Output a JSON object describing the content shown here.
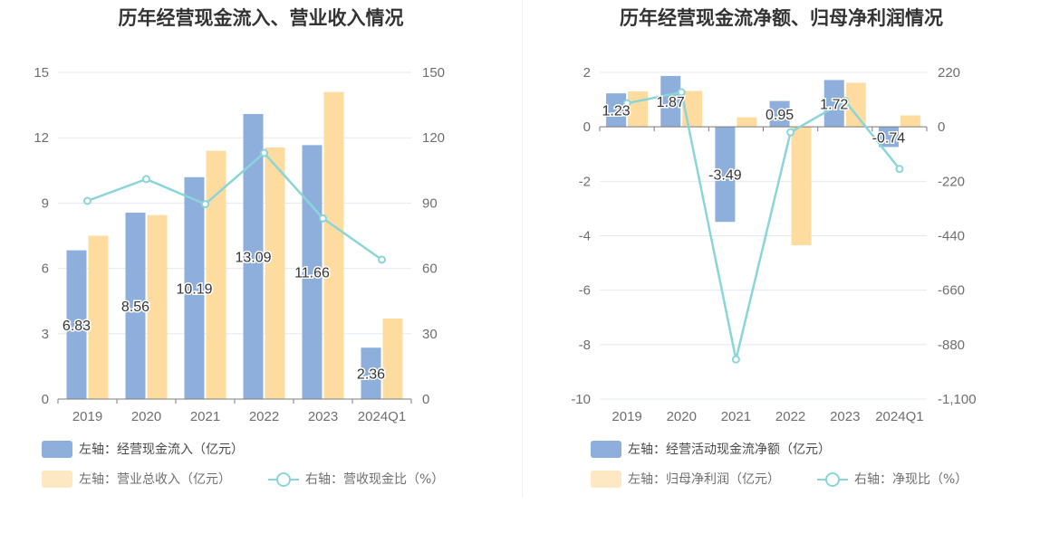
{
  "colors": {
    "bar_primary": "#8eaedc",
    "bar_secondary": "#fedb9f",
    "line": "#8ad5d9",
    "grid": "#e3e8f2",
    "axis_text": "#6e6e6e"
  },
  "chart_data": [
    {
      "type": "bar",
      "title": "历年经营现金流入、营业收入情况",
      "categories": [
        "2019",
        "2020",
        "2021",
        "2022",
        "2023",
        "2024Q1"
      ],
      "y_left": {
        "ticks": [
          "0",
          "3",
          "6",
          "9",
          "12",
          "15"
        ],
        "min": 0,
        "max": 15
      },
      "y_right": {
        "ticks": [
          "0",
          "30",
          "60",
          "90",
          "120",
          "150"
        ],
        "min": 0,
        "max": 150
      },
      "series": [
        {
          "name": "左轴：经营现金流入（亿元）",
          "kind": "bar",
          "axis": "left",
          "values": [
            6.83,
            8.56,
            10.19,
            13.09,
            11.66,
            2.36
          ],
          "labels": [
            "6.83",
            "8.56",
            "10.19",
            "13.09",
            "11.66",
            "2.36"
          ]
        },
        {
          "name": "左轴：营业总收入（亿元）",
          "kind": "bar",
          "axis": "left",
          "values": [
            7.5,
            8.45,
            11.4,
            11.55,
            14.1,
            3.7
          ]
        },
        {
          "name": "右轴：营收现金比（%）",
          "kind": "line",
          "axis": "right",
          "values": [
            91,
            101,
            89.5,
            113,
            83,
            64
          ]
        }
      ]
    },
    {
      "type": "bar",
      "title": "历年经营现金流净额、归母净利润情况",
      "categories": [
        "2019",
        "2020",
        "2021",
        "2022",
        "2023",
        "2024Q1"
      ],
      "y_left": {
        "ticks": [
          "-10",
          "-8",
          "-6",
          "-4",
          "-2",
          "0",
          "2"
        ],
        "min": -10,
        "max": 2
      },
      "y_right": {
        "ticks": [
          "-1,100",
          "-880",
          "-660",
          "-440",
          "-220",
          "0",
          "220"
        ],
        "min": -1100,
        "max": 220
      },
      "series": [
        {
          "name": "左轴：经营活动现金流净额（亿元）",
          "kind": "bar",
          "axis": "left",
          "values": [
            1.23,
            1.87,
            -3.49,
            0.95,
            1.72,
            -0.74
          ],
          "labels": [
            "1.23",
            "1.87",
            "-3.49",
            "0.95",
            "1.72",
            "-0.74"
          ]
        },
        {
          "name": "左轴：归母净利润（亿元）",
          "kind": "bar",
          "axis": "left",
          "values": [
            1.3,
            1.32,
            0.35,
            -4.35,
            1.62,
            0.42
          ]
        },
        {
          "name": "右轴：净现比（%）",
          "kind": "line",
          "axis": "right",
          "values": [
            95,
            140,
            -940,
            -22,
            105,
            -170
          ]
        }
      ]
    }
  ]
}
